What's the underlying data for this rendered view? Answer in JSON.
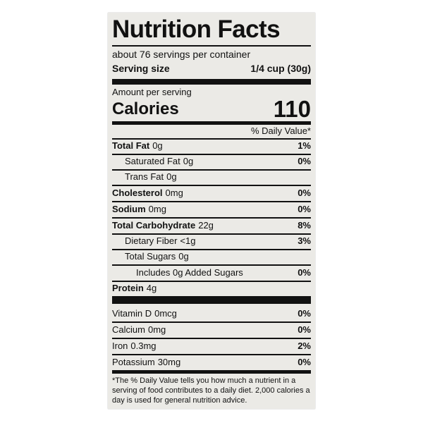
{
  "header": {
    "title": "Nutrition Facts",
    "servings": "about 76 servings per container",
    "serving_size_label": "Serving size",
    "serving_size": "1/4 cup (30g)"
  },
  "calories": {
    "amount_per_serving": "Amount per serving",
    "label": "Calories",
    "value": 110
  },
  "daily_value_header": "% Daily Value*",
  "nutrients": [
    {
      "name": "Total Fat",
      "amount": "0g",
      "dv": "1%"
    },
    {
      "name": "Saturated Fat",
      "amount": "0g",
      "dv": "0%"
    },
    {
      "name": "Trans Fat",
      "amount": "0g"
    },
    {
      "name": "Cholesterol",
      "amount": "0mg",
      "dv": "0%"
    },
    {
      "name": "Sodium",
      "amount": "0mg",
      "dv": "0%"
    },
    {
      "name": "Total Carbohydrate",
      "amount": "22g",
      "dv": "8%"
    },
    {
      "name": "Dietary Fiber",
      "amount": "<1g",
      "dv": "3%"
    },
    {
      "name": "Total Sugars",
      "amount": "0g"
    },
    {
      "name": "Includes 0g Added Sugars",
      "dv": "0%"
    },
    {
      "name": "Protein",
      "amount": "4g"
    }
  ],
  "vitamins": [
    {
      "name": "Vitamin D",
      "amount": "0mcg",
      "dv": "0%"
    },
    {
      "name": "Calcium",
      "amount": "0mg",
      "dv": "0%"
    },
    {
      "name": "Iron",
      "amount": "0.3mg",
      "dv": "2%"
    },
    {
      "name": "Potassium",
      "amount": "30mg",
      "dv": "0%"
    }
  ],
  "footnote": [
    "*The % Daily Value tells you how much a nutrient in a",
    "serving of food contributes to a daily diet. 2,000 calories a",
    "day is used for general nutrition advice."
  ]
}
